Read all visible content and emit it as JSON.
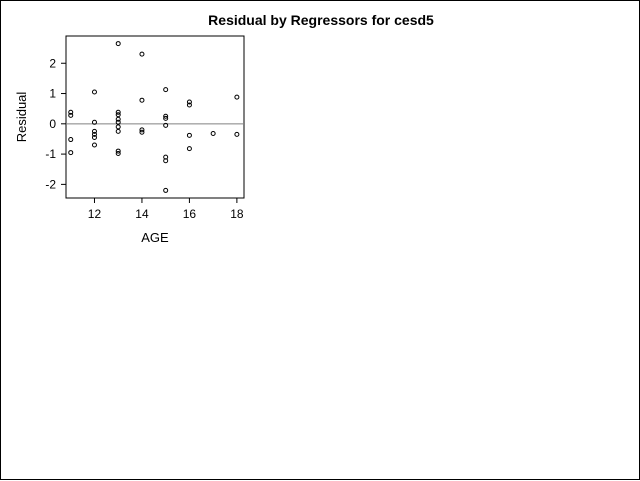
{
  "chart_data": {
    "type": "scatter",
    "title": "Residual by Regressors for cesd5",
    "xlabel": "AGE",
    "ylabel": "Residual",
    "xlim": [
      10.8,
      18.3
    ],
    "ylim": [
      -2.45,
      2.9
    ],
    "xticks": [
      12,
      14,
      16,
      18
    ],
    "yticks": [
      -2,
      -1,
      0,
      1,
      2
    ],
    "reference_line_y": 0,
    "grid": false,
    "legend": "none",
    "colors": {
      "points": "#000000",
      "reference_line": "#808080",
      "frame": "#000000"
    },
    "points": [
      {
        "x": 11,
        "y": 0.38
      },
      {
        "x": 11,
        "y": 0.28
      },
      {
        "x": 11,
        "y": -0.52
      },
      {
        "x": 11,
        "y": -0.95
      },
      {
        "x": 12,
        "y": 1.05
      },
      {
        "x": 12,
        "y": 0.05
      },
      {
        "x": 12,
        "y": -0.25
      },
      {
        "x": 12,
        "y": -0.35
      },
      {
        "x": 12,
        "y": -0.45
      },
      {
        "x": 12,
        "y": -0.7
      },
      {
        "x": 13,
        "y": 2.65
      },
      {
        "x": 13,
        "y": 0.38
      },
      {
        "x": 13,
        "y": 0.3
      },
      {
        "x": 13,
        "y": 0.15
      },
      {
        "x": 13,
        "y": 0.05
      },
      {
        "x": 13,
        "y": -0.1
      },
      {
        "x": 13,
        "y": -0.25
      },
      {
        "x": 13,
        "y": -0.9
      },
      {
        "x": 13,
        "y": -0.98
      },
      {
        "x": 14,
        "y": 2.3
      },
      {
        "x": 14,
        "y": 0.78
      },
      {
        "x": 14,
        "y": -0.2
      },
      {
        "x": 14,
        "y": -0.28
      },
      {
        "x": 15,
        "y": 1.13
      },
      {
        "x": 15,
        "y": 0.25
      },
      {
        "x": 15,
        "y": 0.18
      },
      {
        "x": 15,
        "y": -0.05
      },
      {
        "x": 15,
        "y": -1.1
      },
      {
        "x": 15,
        "y": -1.22
      },
      {
        "x": 15,
        "y": -2.2
      },
      {
        "x": 16,
        "y": 0.72
      },
      {
        "x": 16,
        "y": 0.62
      },
      {
        "x": 16,
        "y": -0.38
      },
      {
        "x": 16,
        "y": -0.82
      },
      {
        "x": 17,
        "y": -0.32
      },
      {
        "x": 18,
        "y": 0.88
      },
      {
        "x": 18,
        "y": -0.35
      }
    ]
  }
}
